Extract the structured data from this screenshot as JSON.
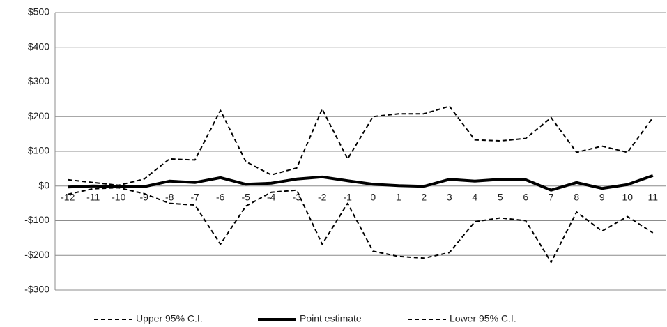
{
  "chart_data": {
    "type": "line",
    "categories": [
      "-12",
      "-11",
      "-10",
      "-9",
      "-8",
      "-7",
      "-6",
      "-5",
      "-4",
      "-3",
      "-2",
      "-1",
      "0",
      "1",
      "2",
      "3",
      "4",
      "5",
      "6",
      "7",
      "8",
      "9",
      "10",
      "11"
    ],
    "series": [
      {
        "name": "Upper 95% C.I.",
        "color": "#000000",
        "dashed": true,
        "width": 2,
        "values": [
          18,
          10,
          2,
          20,
          78,
          75,
          218,
          70,
          32,
          52,
          222,
          78,
          200,
          208,
          208,
          230,
          133,
          130,
          137,
          197,
          97,
          115,
          97,
          197
        ]
      },
      {
        "name": "Point estimate",
        "color": "#000000",
        "dashed": false,
        "width": 4,
        "values": [
          -3,
          0,
          -2,
          -2,
          14,
          10,
          24,
          5,
          8,
          20,
          26,
          15,
          5,
          1,
          -1,
          19,
          14,
          19,
          18,
          -12,
          10,
          -7,
          4,
          30
        ]
      },
      {
        "name": "Lower 95% C.I.",
        "color": "#000000",
        "dashed": true,
        "width": 2,
        "values": [
          -24,
          -8,
          -5,
          -22,
          -50,
          -55,
          -168,
          -58,
          -18,
          -12,
          -168,
          -50,
          -188,
          -203,
          -208,
          -192,
          -103,
          -92,
          -100,
          -220,
          -75,
          -130,
          -88,
          -135
        ]
      }
    ],
    "ylim": [
      -300,
      500
    ],
    "yticks": [
      {
        "value": -300,
        "label": "-$300"
      },
      {
        "value": -200,
        "label": "-$200"
      },
      {
        "value": -100,
        "label": "-$100"
      },
      {
        "value": 0,
        "label": "$0"
      },
      {
        "value": 100,
        "label": "$100"
      },
      {
        "value": 200,
        "label": "$200"
      },
      {
        "value": 300,
        "label": "$300"
      },
      {
        "value": 400,
        "label": "$400"
      },
      {
        "value": 500,
        "label": "$500"
      }
    ],
    "grid": true,
    "legend": "bottom"
  }
}
